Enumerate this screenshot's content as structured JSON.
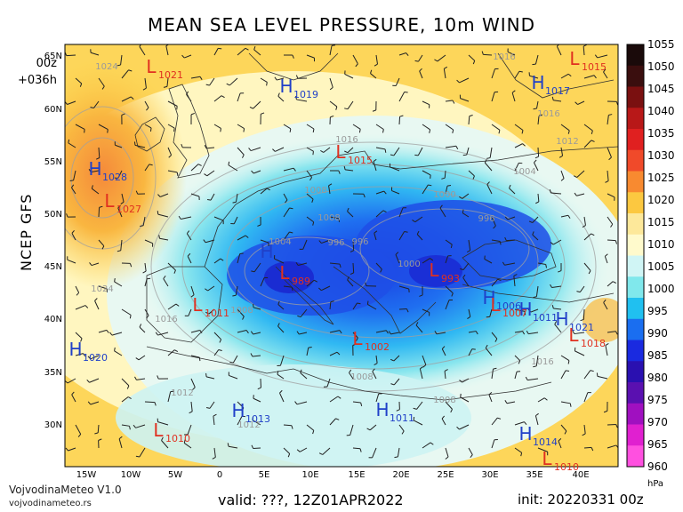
{
  "title": "MEAN SEA LEVEL PRESSURE, 10m WIND",
  "run": {
    "cycle": "00z",
    "lead": "+036h"
  },
  "model": "NCEP GFS",
  "brand": {
    "name": "VojvodinaMeteo V1.0",
    "url": "vojvodinameteo.rs"
  },
  "valid": "valid: ???, 12Z01APR2022",
  "init": "init: 20220331 00z",
  "colorbar": {
    "unit": "hPa",
    "ticks": [
      "1055",
      "1050",
      "1045",
      "1040",
      "1035",
      "1030",
      "1025",
      "1020",
      "1015",
      "1010",
      "1005",
      "1000",
      "995",
      "990",
      "985",
      "980",
      "975",
      "970",
      "965",
      "960"
    ],
    "colors": [
      "#1a0a0a",
      "#3a0e0e",
      "#7a1010",
      "#b81818",
      "#e02020",
      "#f04a2a",
      "#f88a30",
      "#fcc840",
      "#fde89a",
      "#fffacc",
      "#d0f5f5",
      "#80e8ec",
      "#20c0f0",
      "#1a6ef0",
      "#1a2ae0",
      "#2a10b0",
      "#5a10b0",
      "#a010c0",
      "#e020d0",
      "#ff50e0"
    ]
  },
  "axes": {
    "lon_labels": [
      "15W",
      "10W",
      "5W",
      "0",
      "5E",
      "10E",
      "15E",
      "20E",
      "25E",
      "30E",
      "35E",
      "40E"
    ],
    "lat_labels": [
      "65N",
      "60N",
      "55N",
      "50N",
      "45N",
      "40N",
      "35N",
      "30N"
    ]
  },
  "isobar_labels": [
    "1024",
    "1016",
    "1016",
    "1016",
    "1012",
    "1008",
    "1004",
    "1000",
    "996",
    "996",
    "1008",
    "1004",
    "996",
    "1000",
    "1008",
    "1016",
    "1024",
    "1012",
    "1012",
    "1008",
    "1008",
    "1016"
  ],
  "pressure_centers": [
    {
      "type": "L",
      "value": "1021",
      "color": "#e03020"
    },
    {
      "type": "H",
      "value": "1019",
      "color": "#2040c8"
    },
    {
      "type": "L",
      "value": "1015",
      "color": "#e03020"
    },
    {
      "type": "H",
      "value": "1017",
      "color": "#2040c8"
    },
    {
      "type": "L",
      "value": "1015",
      "color": "#e03020"
    },
    {
      "type": "H",
      "value": "1028",
      "color": "#2040c8"
    },
    {
      "type": "L",
      "value": "1027",
      "color": "#e03020"
    },
    {
      "type": "H",
      "value": "",
      "color": "#2040c8"
    },
    {
      "type": "L",
      "value": "989",
      "color": "#e03020"
    },
    {
      "type": "L",
      "value": "993",
      "color": "#e03020"
    },
    {
      "type": "L",
      "value": "1011",
      "color": "#e03020"
    },
    {
      "type": "H",
      "value": "1006",
      "color": "#2040c8"
    },
    {
      "type": "L",
      "value": "1007",
      "color": "#e03020"
    },
    {
      "type": "H",
      "value": "1011",
      "color": "#2040c8"
    },
    {
      "type": "H",
      "value": "1021",
      "color": "#2040c8"
    },
    {
      "type": "L",
      "value": "1018",
      "color": "#e03020"
    },
    {
      "type": "H",
      "value": "1020",
      "color": "#2040c8"
    },
    {
      "type": "L",
      "value": "1002",
      "color": "#e03020"
    },
    {
      "type": "H",
      "value": "1013",
      "color": "#2040c8"
    },
    {
      "type": "H",
      "value": "1011",
      "color": "#2040c8"
    },
    {
      "type": "L",
      "value": "1010",
      "color": "#e03020"
    },
    {
      "type": "H",
      "value": "1014",
      "color": "#2040c8"
    },
    {
      "type": "L",
      "value": "1010",
      "color": "#e03020"
    }
  ]
}
